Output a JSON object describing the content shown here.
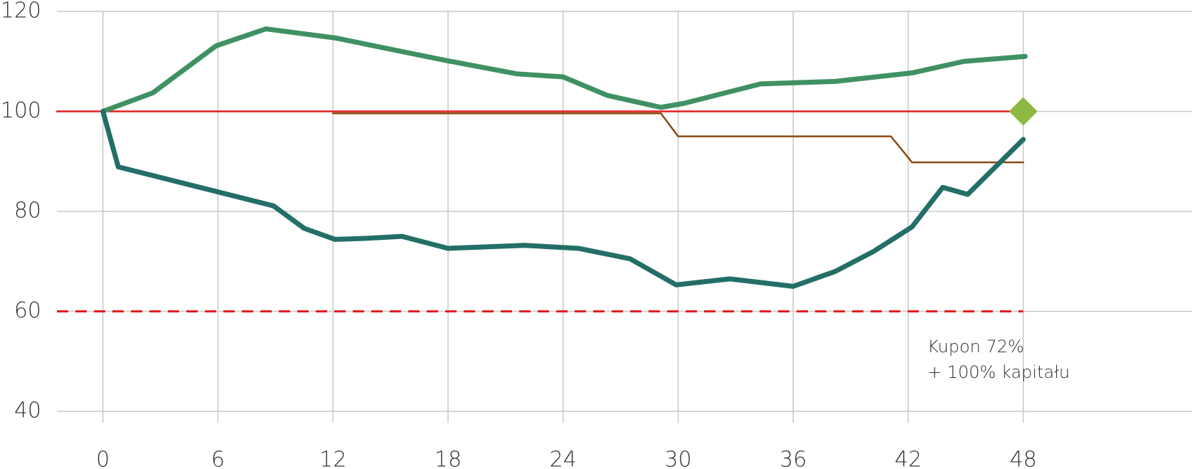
{
  "chart_data": {
    "type": "line",
    "xlim": [
      -2.4,
      56.8
    ],
    "ylim": [
      40,
      120
    ],
    "xticks": [
      0,
      6,
      12,
      18,
      24,
      30,
      36,
      42,
      48
    ],
    "yticks": [
      40,
      60,
      80,
      100,
      120
    ],
    "grid": true,
    "series": [
      {
        "color": "#e01f1f",
        "line_style": "thin",
        "x": [
          -2.4,
          48
        ],
        "values": [
          100,
          100
        ]
      },
      {
        "color": "#e01f1f",
        "line_style": "dashed",
        "x": [
          -2.4,
          48
        ],
        "values": [
          60,
          60
        ]
      },
      {
        "color": "#8a4a12",
        "line_style": "thin",
        "x": [
          12,
          29.1,
          30,
          41.1,
          42.2,
          48
        ],
        "values": [
          99.6,
          99.6,
          95,
          95,
          89.8,
          89.8
        ]
      },
      {
        "color": "#3f9163",
        "line_style": "thick",
        "x": [
          0,
          2.6,
          5.9,
          8.5,
          12.1,
          18,
          21.6,
          24,
          26.3,
          29.1,
          30.3,
          34.3,
          38.2,
          42.2,
          44.9,
          48.1
        ],
        "values": [
          100,
          103.7,
          113.1,
          116.5,
          114.7,
          110.1,
          107.5,
          106.9,
          103.2,
          100.8,
          101.6,
          105.5,
          106,
          107.7,
          110,
          111
        ]
      },
      {
        "color": "#236f68",
        "line_style": "thick",
        "x": [
          0,
          0.8,
          8.9,
          10.5,
          12.1,
          13.7,
          15.6,
          18,
          22,
          24.8,
          27.5,
          29.9,
          32.7,
          36,
          38.2,
          40.2,
          42.2,
          43.8,
          45.1,
          48
        ],
        "values": [
          100,
          88.9,
          81.1,
          76.6,
          74.4,
          74.6,
          75,
          72.6,
          73.2,
          72.6,
          70.5,
          65.3,
          66.5,
          65,
          68,
          72,
          76.9,
          84.8,
          83.4,
          94.4
        ]
      },
      {
        "color": "#8db843",
        "line_style": "marker",
        "x": [
          48
        ],
        "values": [
          100
        ]
      }
    ],
    "annotations": [
      "Kupon 72%",
      "+ 100% kapitału"
    ]
  }
}
